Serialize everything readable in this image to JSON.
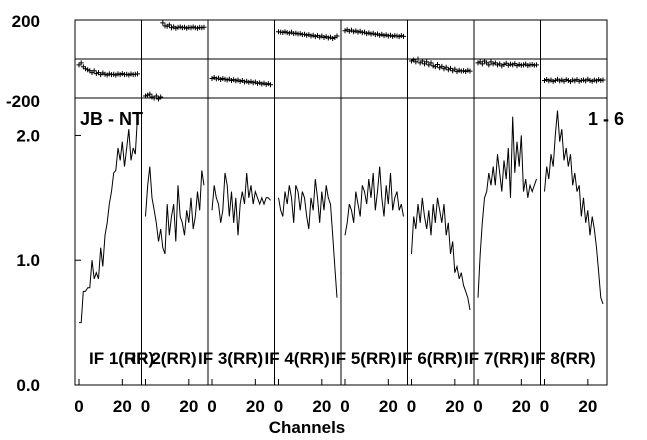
{
  "chart_data": {
    "type": "line",
    "annotation_left": "JB - NT",
    "annotation_right": "1 - 6",
    "xlabel": "Channels",
    "x_tick_labels": [
      "0",
      "20"
    ],
    "phase": {
      "ylim": [
        -200,
        200
      ],
      "y_tick_labels": [
        "200",
        "-200"
      ],
      "marker": "plus"
    },
    "amplitude": {
      "ylim": [
        0,
        2.3
      ],
      "y_tick_labels": [
        "2.0",
        "1.0",
        "0.0"
      ],
      "y_ticks": [
        2.0,
        1.0,
        0.0
      ]
    },
    "panels": [
      {
        "label": "IF 1(RR)",
        "amp": [
          0.5,
          0.5,
          0.75,
          0.75,
          0.78,
          0.78,
          1.0,
          0.85,
          0.9,
          0.85,
          1.1,
          0.95,
          1.2,
          1.3,
          1.45,
          1.55,
          1.7,
          1.72,
          1.9,
          1.8,
          1.95,
          1.75,
          1.9,
          2.05,
          1.8,
          1.9,
          1.85,
          2.15
        ],
        "phase": [
          -30,
          -20,
          -40,
          -50,
          -55,
          -60,
          -70,
          -60,
          -75,
          -70,
          -80,
          -72,
          -78,
          -82,
          -76,
          -80,
          -78,
          -83,
          -76,
          -80,
          -75,
          -80,
          -78,
          -82,
          -77,
          -80,
          -78,
          -76
        ]
      },
      {
        "label": "IF 2(RR)",
        "amp": [
          1.35,
          1.6,
          1.75,
          1.5,
          1.4,
          1.3,
          1.15,
          1.25,
          1.1,
          1.05,
          1.45,
          1.2,
          1.35,
          1.45,
          1.15,
          1.6,
          1.35,
          1.3,
          1.2,
          1.4,
          1.3,
          1.5,
          1.25,
          1.35,
          1.55,
          1.4,
          1.72,
          1.6
        ],
        "phase": [
          -190,
          -185,
          -180,
          -195,
          -200,
          -190,
          -205,
          -195,
          185,
          170,
          168,
          175,
          160,
          165,
          158,
          162,
          165,
          160,
          163,
          158,
          162,
          160,
          164,
          160,
          158,
          162,
          160,
          163
        ]
      },
      {
        "label": "IF 3(RR)",
        "amp": [
          1.4,
          1.6,
          1.5,
          1.45,
          1.3,
          1.4,
          1.7,
          1.6,
          1.35,
          1.55,
          1.3,
          1.5,
          1.2,
          1.45,
          1.55,
          1.45,
          1.7,
          1.5,
          1.6,
          1.45,
          1.55,
          1.5,
          1.45,
          1.5,
          1.45,
          1.5,
          1.5,
          1.48
        ],
        "phase": [
          -100,
          -95,
          -102,
          -98,
          -105,
          -100,
          -104,
          -108,
          -103,
          -110,
          -106,
          -112,
          -108,
          -115,
          -110,
          -118,
          -114,
          -120,
          -116,
          -122,
          -118,
          -125,
          -122,
          -128,
          -124,
          -130,
          -126,
          -132
        ]
      },
      {
        "label": "IF 4(RR)",
        "amp": [
          1.5,
          1.4,
          1.35,
          1.55,
          1.45,
          1.6,
          1.5,
          1.3,
          1.6,
          1.55,
          1.4,
          1.55,
          1.5,
          1.35,
          1.25,
          1.5,
          1.4,
          1.65,
          1.5,
          1.3,
          1.55,
          1.4,
          1.6,
          1.5,
          1.45,
          1.2,
          0.95,
          0.7
        ],
        "phase": [
          140,
          138,
          136,
          140,
          135,
          132,
          138,
          130,
          133,
          128,
          130,
          125,
          127,
          122,
          125,
          118,
          122,
          115,
          120,
          112,
          118,
          110,
          115,
          108,
          112,
          105,
          110,
          118
        ]
      },
      {
        "label": "IF 5(RR)",
        "amp": [
          1.2,
          1.3,
          1.45,
          1.4,
          1.3,
          1.55,
          1.45,
          1.35,
          1.6,
          1.55,
          1.45,
          1.65,
          1.5,
          1.7,
          1.4,
          1.55,
          1.75,
          1.5,
          1.35,
          1.6,
          1.45,
          1.7,
          1.4,
          1.5,
          1.55,
          1.4,
          1.45,
          1.35
        ],
        "phase": [
          145,
          150,
          142,
          148,
          140,
          144,
          138,
          142,
          135,
          138,
          130,
          134,
          128,
          132,
          125,
          128,
          122,
          126,
          120,
          124,
          118,
          122,
          116,
          120,
          118,
          115,
          120,
          116
        ]
      },
      {
        "label": "IF 6(RR)",
        "amp": [
          1.05,
          1.35,
          1.25,
          1.45,
          1.3,
          1.5,
          1.35,
          1.25,
          1.4,
          1.2,
          1.45,
          1.3,
          1.5,
          1.4,
          1.3,
          1.45,
          1.2,
          1.3,
          1.05,
          1.15,
          0.9,
          0.95,
          0.85,
          0.9,
          0.8,
          0.75,
          0.7,
          0.6
        ],
        "phase": [
          -10,
          -5,
          -15,
          0,
          -20,
          -10,
          -25,
          -15,
          -30,
          -20,
          -35,
          -40,
          -28,
          -45,
          -38,
          -50,
          -42,
          -55,
          -48,
          -60,
          -52,
          -65,
          -58,
          -62,
          -60,
          -64,
          -58,
          -62
        ]
      },
      {
        "label": "IF 7(RR)",
        "amp": [
          0.7,
          1.05,
          1.3,
          1.5,
          1.55,
          1.7,
          1.6,
          1.75,
          1.6,
          1.85,
          1.7,
          1.55,
          1.8,
          1.65,
          1.9,
          1.5,
          2.15,
          1.7,
          1.95,
          1.75,
          2.0,
          1.55,
          1.65,
          1.5,
          1.6,
          1.55,
          1.6,
          1.65
        ],
        "phase": [
          -20,
          -15,
          -25,
          -10,
          -20,
          -30,
          -15,
          -25,
          -20,
          -30,
          -25,
          -35,
          -28,
          -22,
          -32,
          -26,
          -30,
          -24,
          -34,
          -28,
          -32,
          -30,
          -26,
          -34,
          -30,
          -28,
          -32,
          -30
        ]
      },
      {
        "label": "IF 8(RR)",
        "amp": [
          1.55,
          1.75,
          1.65,
          1.85,
          1.75,
          2.0,
          2.2,
          1.95,
          2.05,
          1.8,
          1.9,
          1.75,
          1.85,
          1.6,
          1.7,
          1.55,
          1.6,
          1.35,
          1.5,
          1.3,
          1.4,
          1.2,
          1.35,
          1.25,
          1.1,
          0.9,
          0.7,
          0.65
        ],
        "phase": [
          -110,
          -105,
          -112,
          -108,
          -115,
          -110,
          -104,
          -112,
          -108,
          -114,
          -106,
          -110,
          -116,
          -108,
          -112,
          -106,
          -114,
          -110,
          -108,
          -112,
          -104,
          -110,
          -114,
          -108,
          -112,
          -106,
          -110,
          -108
        ]
      }
    ]
  }
}
